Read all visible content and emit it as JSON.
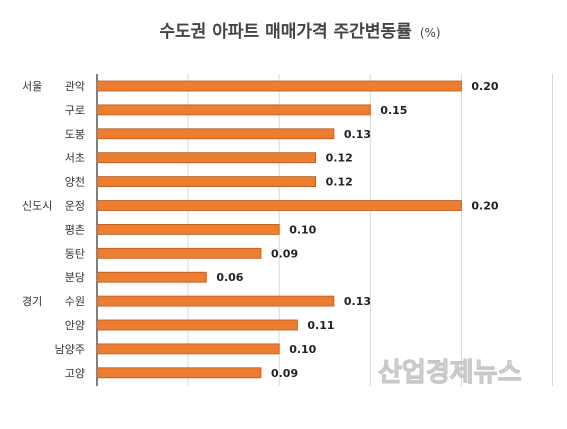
{
  "chart_data": {
    "type": "bar",
    "orientation": "horizontal",
    "title": "수도권 아파트 매매가격 주간변동률",
    "title_unit": "(%)",
    "groups": [
      {
        "label": "서울",
        "start_index": 0
      },
      {
        "label": "신도시",
        "start_index": 5
      },
      {
        "label": "경기",
        "start_index": 9
      }
    ],
    "categories": [
      "관악",
      "구로",
      "도봉",
      "서초",
      "양천",
      "운정",
      "평촌",
      "동탄",
      "분당",
      "수원",
      "안양",
      "남양주",
      "고양"
    ],
    "values": [
      0.2,
      0.15,
      0.13,
      0.12,
      0.12,
      0.2,
      0.1,
      0.09,
      0.06,
      0.13,
      0.11,
      0.1,
      0.09
    ],
    "value_labels": [
      "0.20",
      "0.15",
      "0.13",
      "0.12",
      "0.12",
      "0.20",
      "0.10",
      "0.09",
      "0.06",
      "0.13",
      "0.11",
      "0.10",
      "0.09"
    ],
    "xlim": [
      0,
      0.25
    ],
    "grid_step": 0.05,
    "grid": true,
    "legend": false,
    "bar_color": "#ED7D31",
    "bar_stroke": "#B85A1C"
  },
  "watermark": "산업경제뉴스"
}
